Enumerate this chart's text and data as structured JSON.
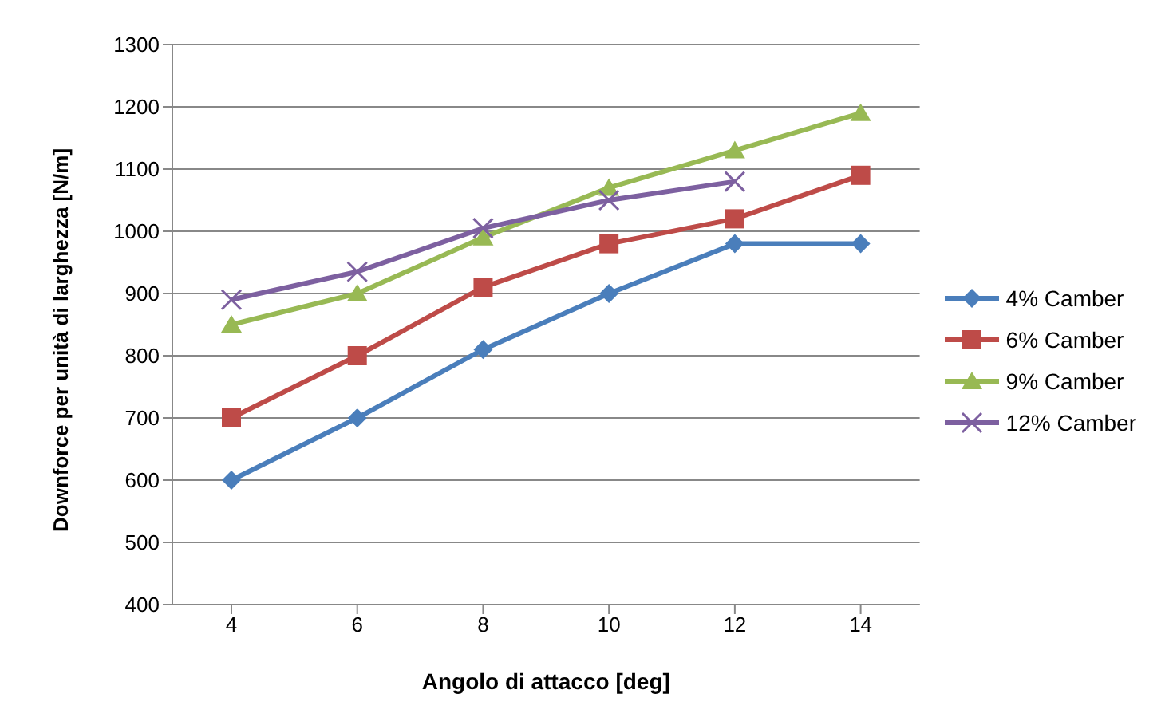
{
  "chart_data": {
    "type": "line",
    "xlabel": "Angolo di attacco [deg]",
    "ylabel": "Downforce per unità di larghezza  [N/m]",
    "categories": [
      "4",
      "6",
      "8",
      "10",
      "12",
      "14"
    ],
    "series": [
      {
        "name": "4% Camber",
        "color": "#4a7ebb",
        "marker": "diamond",
        "values": [
          600,
          700,
          810,
          900,
          980,
          980
        ]
      },
      {
        "name": "6% Camber",
        "color": "#be4b48",
        "marker": "square",
        "values": [
          700,
          800,
          910,
          980,
          1020,
          1090
        ]
      },
      {
        "name": "9% Camber",
        "color": "#98b954",
        "marker": "triangle",
        "values": [
          850,
          900,
          990,
          1070,
          1130,
          1190
        ]
      },
      {
        "name": "12% Camber",
        "color": "#7d60a0",
        "marker": "cross",
        "values": [
          890,
          935,
          1005,
          1050,
          1080,
          null
        ]
      }
    ],
    "ylim": [
      400,
      1300
    ],
    "yticks": [
      400,
      500,
      600,
      700,
      800,
      900,
      1000,
      1100,
      1200,
      1300
    ],
    "grid": "y",
    "legend": "right",
    "line_style": "solid"
  }
}
